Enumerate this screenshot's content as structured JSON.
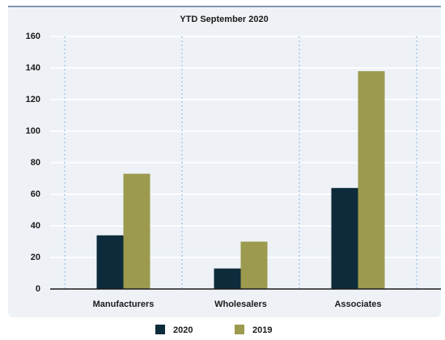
{
  "chart_data": {
    "type": "bar",
    "title": "YTD September 2020",
    "categories": [
      "Manufacturers",
      "Wholesalers",
      "Associates"
    ],
    "series": [
      {
        "name": "2020",
        "color": "#0d2b3a",
        "values": [
          34,
          13,
          64
        ]
      },
      {
        "name": "2019",
        "color": "#9c9a4e",
        "values": [
          73,
          30,
          138
        ]
      }
    ],
    "ylim": [
      0,
      160
    ],
    "yticks": [
      0,
      20,
      40,
      60,
      80,
      100,
      120,
      140,
      160
    ],
    "grid": true,
    "legend": "bottom"
  }
}
